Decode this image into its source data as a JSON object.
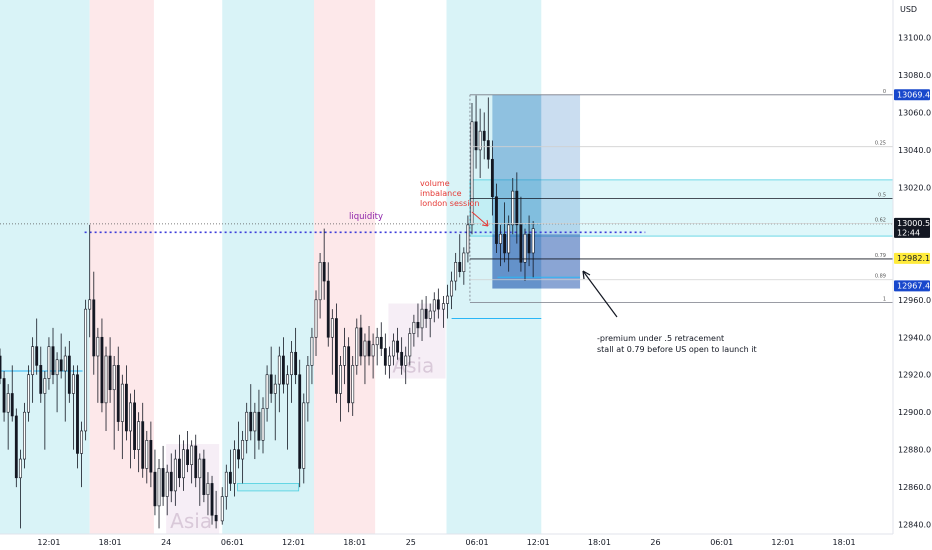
{
  "chart_data": {
    "type": "candlestick",
    "currency": "USD",
    "ylim": [
      12835,
      13120
    ],
    "y_ticks": [
      12840,
      12860,
      12880,
      12900,
      12920,
      12940,
      12960,
      13020,
      13040,
      13060,
      13080,
      13100
    ],
    "x_ticks": [
      {
        "label": "12:01",
        "t": 0.5
      },
      {
        "label": "18:01",
        "t": 6.5
      },
      {
        "label": "24",
        "t": 12
      },
      {
        "label": "06:01",
        "t": 18.5
      },
      {
        "label": "12:01",
        "t": 24.5
      },
      {
        "label": "18:01",
        "t": 30.5
      },
      {
        "label": "25",
        "t": 36
      },
      {
        "label": "06:01",
        "t": 42.5
      },
      {
        "label": "12:01",
        "t": 48.5
      },
      {
        "label": "18:01",
        "t": 54.5
      },
      {
        "label": "26",
        "t": 60
      },
      {
        "label": "06:01",
        "t": 66.5
      },
      {
        "label": "12:01",
        "t": 72.5
      },
      {
        "label": "18:01",
        "t": 78.5
      }
    ],
    "xlim": [
      -4.3,
      83.3
    ],
    "sessions": [
      {
        "type": "us",
        "t0": -4.3,
        "t1": 4.5
      },
      {
        "type": "london",
        "t0": 4.5,
        "t1": 10.8
      },
      {
        "type": "us",
        "t0": 17.5,
        "t1": 26.5
      },
      {
        "type": "london",
        "t0": 26.5,
        "t1": 32.5
      },
      {
        "type": "us",
        "t0": 39.5,
        "t1": 48.8
      }
    ],
    "asia_boxes": [
      {
        "label": "Asia",
        "t0": 12.0,
        "t1": 17.2,
        "p0": 12835,
        "p1": 12883
      },
      {
        "label": "Asia",
        "t0": 33.8,
        "t1": 39.4,
        "p0": 12918,
        "p1": 12958
      }
    ],
    "price_badges": [
      {
        "value": "13069.4",
        "price": 13069.4,
        "bg": "#1848cc",
        "fg": "#ffffff"
      },
      {
        "value": "13000.5",
        "price": 13000.5,
        "bg": "#131722",
        "fg": "#ffffff",
        "sub": "12:44"
      },
      {
        "value": "12982.1",
        "price": 12982.1,
        "bg": "#ffeb3b",
        "fg": "#131722"
      },
      {
        "value": "12967.4",
        "price": 12967.4,
        "bg": "#1848cc",
        "fg": "#ffffff"
      }
    ],
    "fib": {
      "t0": 41.8,
      "t1": 83.3,
      "p_high": 13069.4,
      "p_low": 12958.5,
      "levels": [
        {
          "label": "0",
          "price": 13069.4,
          "color": "#787b86"
        },
        {
          "label": "0.25",
          "price": 13041.7,
          "color": "#d0d0d0"
        },
        {
          "label": "0.5",
          "price": 13014.0,
          "color": "#131722"
        },
        {
          "label": "0.62",
          "price": 13000.7,
          "color": "#d0d0d0"
        },
        {
          "label": "0.79",
          "price": 12981.8,
          "color": "#131722"
        },
        {
          "label": "0.89",
          "price": 12970.7,
          "color": "#d0d0d0"
        },
        {
          "label": "1",
          "price": 12958.5,
          "color": "#787b86"
        }
      ]
    },
    "imbalance_zones": [
      {
        "t0": 41.8,
        "t1": 83.3,
        "p0": 12994,
        "p1": 13024
      },
      {
        "t0": 19.0,
        "t1": 25.0,
        "p0": 12858,
        "p1": 12862
      }
    ],
    "blue_lines": [
      {
        "t0": -4.3,
        "t1": 3.8,
        "price": 12922
      },
      {
        "t0": 40.0,
        "t1": 48.8,
        "price": 12950
      },
      {
        "t0": 44.5,
        "t1": 52.6,
        "price": 12972
      }
    ],
    "target_box": {
      "t0": 44.0,
      "t1": 48.8,
      "p0": 12966,
      "p1": 13069.4
    },
    "position_box": {
      "t0": 48.8,
      "t1": 52.6,
      "p0": 12966,
      "p1": 13069.4
    },
    "liquidity_line": {
      "t0": 4.0,
      "t1": 59.0,
      "price": 12996
    },
    "current_price_line": 13000.5,
    "candles": [
      [
        -4.3,
        12930,
        12934,
        12915,
        12918
      ],
      [
        -3.9,
        12918,
        12922,
        12895,
        12900
      ],
      [
        -3.5,
        12900,
        12915,
        12880,
        12910
      ],
      [
        -3.1,
        12910,
        12925,
        12895,
        12898
      ],
      [
        -2.7,
        12898,
        12902,
        12860,
        12865
      ],
      [
        -2.3,
        12865,
        12880,
        12838,
        12875
      ],
      [
        -1.9,
        12875,
        12905,
        12870,
        12900
      ],
      [
        -1.5,
        12900,
        12925,
        12895,
        12920
      ],
      [
        -1.1,
        12920,
        12940,
        12905,
        12935
      ],
      [
        -0.7,
        12935,
        12950,
        12920,
        12925
      ],
      [
        -0.3,
        12925,
        12935,
        12905,
        12910
      ],
      [
        0.1,
        12910,
        12922,
        12880,
        12918
      ],
      [
        0.5,
        12918,
        12940,
        12912,
        12935
      ],
      [
        0.9,
        12935,
        12945,
        12915,
        12920
      ],
      [
        1.3,
        12920,
        12932,
        12900,
        12928
      ],
      [
        1.7,
        12928,
        12942,
        12918,
        12922
      ],
      [
        2.1,
        12922,
        12935,
        12895,
        12930
      ],
      [
        2.5,
        12930,
        12938,
        12905,
        12910
      ],
      [
        2.9,
        12910,
        12925,
        12880,
        12920
      ],
      [
        3.3,
        12920,
        12925,
        12870,
        12878
      ],
      [
        3.7,
        12878,
        12895,
        12860,
        12890
      ],
      [
        4.1,
        12890,
        12960,
        12885,
        12955
      ],
      [
        4.5,
        12955,
        13000,
        12940,
        12960
      ],
      [
        4.9,
        12960,
        12975,
        12920,
        12930
      ],
      [
        5.3,
        12930,
        12945,
        12905,
        12940
      ],
      [
        5.7,
        12940,
        12950,
        12900,
        12905
      ],
      [
        6.1,
        12905,
        12935,
        12890,
        12930
      ],
      [
        6.5,
        12930,
        12940,
        12905,
        12912
      ],
      [
        6.9,
        12912,
        12930,
        12880,
        12925
      ],
      [
        7.3,
        12925,
        12935,
        12890,
        12895
      ],
      [
        7.7,
        12895,
        12920,
        12875,
        12915
      ],
      [
        8.1,
        12915,
        12925,
        12885,
        12890
      ],
      [
        8.5,
        12890,
        12910,
        12870,
        12905
      ],
      [
        8.9,
        12905,
        12912,
        12875,
        12880
      ],
      [
        9.3,
        12880,
        12900,
        12868,
        12895
      ],
      [
        9.7,
        12895,
        12905,
        12865,
        12870
      ],
      [
        10.1,
        12870,
        12890,
        12862,
        12885
      ],
      [
        10.5,
        12885,
        12895,
        12860,
        12868
      ],
      [
        10.9,
        12868,
        12880,
        12845,
        12850
      ],
      [
        11.3,
        12850,
        12875,
        12838,
        12870
      ],
      [
        11.7,
        12870,
        12882,
        12850,
        12855
      ],
      [
        12.1,
        12855,
        12872,
        12845,
        12868
      ],
      [
        12.5,
        12868,
        12878,
        12852,
        12858
      ],
      [
        12.9,
        12858,
        12880,
        12850,
        12875
      ],
      [
        13.3,
        12875,
        12888,
        12860,
        12865
      ],
      [
        13.7,
        12865,
        12885,
        12858,
        12880
      ],
      [
        14.1,
        12880,
        12890,
        12868,
        12872
      ],
      [
        14.5,
        12872,
        12885,
        12862,
        12882
      ],
      [
        14.9,
        12882,
        12888,
        12860,
        12865
      ],
      [
        15.3,
        12865,
        12878,
        12850,
        12875
      ],
      [
        15.7,
        12875,
        12880,
        12852,
        12856
      ],
      [
        16.1,
        12856,
        12868,
        12845,
        12862
      ],
      [
        16.5,
        12862,
        12866,
        12840,
        12845
      ],
      [
        16.9,
        12845,
        12858,
        12838,
        12842
      ],
      [
        17.5,
        12842,
        12860,
        12840,
        12855
      ],
      [
        17.9,
        12855,
        12872,
        12848,
        12868
      ],
      [
        18.3,
        12868,
        12880,
        12858,
        12862
      ],
      [
        18.7,
        12862,
        12885,
        12855,
        12880
      ],
      [
        19.1,
        12880,
        12895,
        12870,
        12875
      ],
      [
        19.5,
        12875,
        12890,
        12862,
        12885
      ],
      [
        19.9,
        12885,
        12905,
        12878,
        12900
      ],
      [
        20.3,
        12900,
        12915,
        12885,
        12890
      ],
      [
        20.7,
        12890,
        12905,
        12875,
        12900
      ],
      [
        21.1,
        12900,
        12912,
        12880,
        12885
      ],
      [
        21.5,
        12885,
        12908,
        12878,
        12902
      ],
      [
        21.9,
        12902,
        12925,
        12895,
        12920
      ],
      [
        22.3,
        12920,
        12935,
        12905,
        12910
      ],
      [
        22.7,
        12910,
        12920,
        12885,
        12915
      ],
      [
        23.1,
        12915,
        12935,
        12900,
        12930
      ],
      [
        23.5,
        12930,
        12940,
        12910,
        12915
      ],
      [
        23.9,
        12915,
        12925,
        12880,
        12920
      ],
      [
        24.3,
        12920,
        12938,
        12905,
        12932
      ],
      [
        24.7,
        12932,
        12945,
        12915,
        12920
      ],
      [
        25.1,
        12920,
        12928,
        12860,
        12870
      ],
      [
        25.5,
        12870,
        12910,
        12862,
        12905
      ],
      [
        25.9,
        12905,
        12930,
        12895,
        12925
      ],
      [
        26.3,
        12925,
        12945,
        12915,
        12940
      ],
      [
        26.7,
        12940,
        12965,
        12930,
        12960
      ],
      [
        27.1,
        12960,
        12985,
        12950,
        12980
      ],
      [
        27.5,
        12980,
        12998,
        12960,
        12970
      ],
      [
        27.9,
        12970,
        12980,
        12935,
        12940
      ],
      [
        28.3,
        12940,
        12955,
        12920,
        12950
      ],
      [
        28.7,
        12950,
        12958,
        12905,
        12910
      ],
      [
        29.1,
        12910,
        12930,
        12895,
        12925
      ],
      [
        29.5,
        12925,
        12945,
        12915,
        12935
      ],
      [
        29.9,
        12935,
        12940,
        12900,
        12905
      ],
      [
        30.3,
        12905,
        12930,
        12898,
        12925
      ],
      [
        30.7,
        12925,
        12950,
        12920,
        12945
      ],
      [
        31.1,
        12945,
        12952,
        12925,
        12930
      ],
      [
        31.5,
        12930,
        12942,
        12915,
        12938
      ],
      [
        31.9,
        12938,
        12946,
        12925,
        12930
      ],
      [
        32.3,
        12930,
        12942,
        12918,
        12936
      ],
      [
        32.7,
        12936,
        12945,
        12925,
        12940
      ],
      [
        33.1,
        12940,
        12948,
        12930,
        12934
      ],
      [
        33.5,
        12934,
        12942,
        12920,
        12925
      ],
      [
        33.9,
        12925,
        12935,
        12918,
        12930
      ],
      [
        34.3,
        12930,
        12942,
        12925,
        12938
      ],
      [
        34.7,
        12938,
        12945,
        12928,
        12932
      ],
      [
        35.1,
        12932,
        12940,
        12920,
        12925
      ],
      [
        35.5,
        12925,
        12935,
        12915,
        12930
      ],
      [
        35.9,
        12930,
        12945,
        12925,
        12942
      ],
      [
        36.3,
        12942,
        12952,
        12935,
        12948
      ],
      [
        36.7,
        12948,
        12958,
        12940,
        12945
      ],
      [
        37.1,
        12945,
        12960,
        12938,
        12955
      ],
      [
        37.5,
        12955,
        12962,
        12945,
        12950
      ],
      [
        37.9,
        12950,
        12958,
        12940,
        12954
      ],
      [
        38.3,
        12954,
        12964,
        12948,
        12960
      ],
      [
        38.7,
        12960,
        12966,
        12950,
        12955
      ],
      [
        39.2,
        12955,
        12962,
        12945,
        12958
      ],
      [
        39.6,
        12958,
        12968,
        12950,
        12962
      ],
      [
        40.0,
        12962,
        12975,
        12955,
        12970
      ],
      [
        40.4,
        12970,
        12985,
        12965,
        12980
      ],
      [
        40.8,
        12980,
        12995,
        12972,
        12975
      ],
      [
        41.2,
        12975,
        12988,
        12968,
        12985
      ],
      [
        41.6,
        12985,
        13005,
        12980,
        13000
      ],
      [
        42.0,
        13000,
        13065,
        12995,
        13055
      ],
      [
        42.4,
        13055,
        13069,
        13030,
        13040
      ],
      [
        42.8,
        13040,
        13062,
        13025,
        13050
      ],
      [
        43.2,
        13050,
        13060,
        13035,
        13045
      ],
      [
        43.6,
        13045,
        13068,
        13030,
        13035
      ],
      [
        44.0,
        13035,
        13045,
        13005,
        13015
      ],
      [
        44.4,
        13015,
        13022,
        12985,
        12990
      ],
      [
        44.8,
        12990,
        13000,
        12978,
        12995
      ],
      [
        45.2,
        12995,
        13012,
        12980,
        12985
      ],
      [
        45.6,
        12985,
        13005,
        12975,
        13000
      ],
      [
        46.0,
        13000,
        13025,
        12995,
        13018
      ],
      [
        46.4,
        13018,
        13028,
        12990,
        13000
      ],
      [
        46.8,
        13000,
        13015,
        12975,
        12980
      ],
      [
        47.2,
        12980,
        12998,
        12970,
        12995
      ],
      [
        47.6,
        12995,
        13005,
        12978,
        12985
      ],
      [
        48.0,
        12985,
        13002,
        12972,
        12998
      ]
    ]
  },
  "annotations": {
    "liquidity": "liquidity",
    "imbalance_line1": "volume",
    "imbalance_line2": "imbalance",
    "imbalance_line3": "london session",
    "note_line1": "-premium under .5 retracement",
    "note_line2": "stall at 0.79 before US open to launch it"
  }
}
